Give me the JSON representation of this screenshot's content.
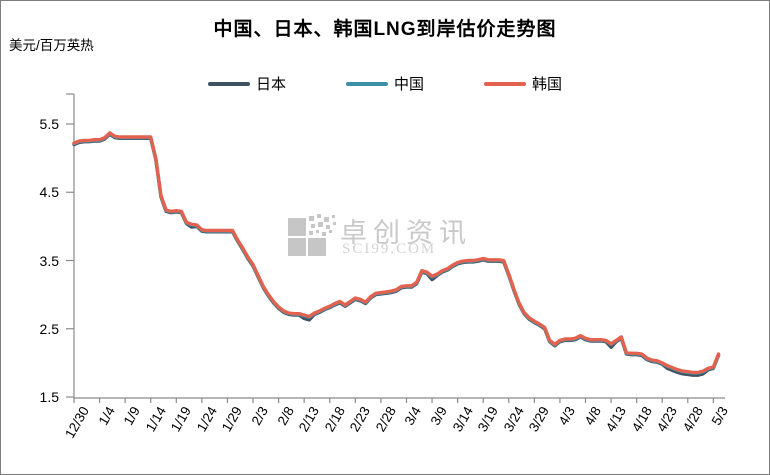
{
  "chart": {
    "title": "中国、日本、韩国LNG到岸估价走势图",
    "unit_label": "美元/百万英热"
  },
  "watermark": {
    "name": "卓创资讯",
    "site": "SCI99.COM"
  },
  "chart_data": {
    "type": "line",
    "title": "中国、日本、韩国LNG到岸估价走势图",
    "xlabel": "",
    "ylabel": "美元/百万英热",
    "ylim": [
      1.5,
      5.5
    ],
    "y_ticks": [
      5.5,
      4.5,
      3.5,
      2.5,
      1.5
    ],
    "grid": false,
    "legend_position": "top",
    "x_tick_labels": [
      "12/30",
      "1/4",
      "1/9",
      "1/14",
      "1/19",
      "1/24",
      "1/29",
      "2/3",
      "2/8",
      "2/13",
      "2/18",
      "2/23",
      "2/28",
      "3/4",
      "3/9",
      "3/14",
      "3/19",
      "3/24",
      "3/29",
      "4/3",
      "4/8",
      "4/13",
      "4/18",
      "4/23",
      "4/28",
      "5/3"
    ],
    "x": [
      "12/30",
      "12/31",
      "1/1",
      "1/2",
      "1/3",
      "1/4",
      "1/5",
      "1/6",
      "1/7",
      "1/8",
      "1/9",
      "1/10",
      "1/11",
      "1/12",
      "1/13",
      "1/14",
      "1/15",
      "1/16",
      "1/17",
      "1/18",
      "1/19",
      "1/20",
      "1/21",
      "1/22",
      "1/23",
      "1/24",
      "1/25",
      "1/26",
      "1/27",
      "1/28",
      "1/29",
      "1/30",
      "1/31",
      "2/1",
      "2/2",
      "2/3",
      "2/4",
      "2/5",
      "2/6",
      "2/7",
      "2/8",
      "2/9",
      "2/10",
      "2/11",
      "2/12",
      "2/13",
      "2/14",
      "2/15",
      "2/16",
      "2/17",
      "2/18",
      "2/19",
      "2/20",
      "2/21",
      "2/22",
      "2/23",
      "2/24",
      "2/25",
      "2/26",
      "2/27",
      "2/28",
      "3/1",
      "3/2",
      "3/3",
      "3/4",
      "3/5",
      "3/6",
      "3/7",
      "3/8",
      "3/9",
      "3/10",
      "3/11",
      "3/12",
      "3/13",
      "3/14",
      "3/15",
      "3/16",
      "3/17",
      "3/18",
      "3/19",
      "3/20",
      "3/21",
      "3/22",
      "3/23",
      "3/24",
      "3/25",
      "3/26",
      "3/27",
      "3/28",
      "3/29",
      "3/30",
      "3/31",
      "4/1",
      "4/2",
      "4/3",
      "4/4",
      "4/5",
      "4/6",
      "4/7",
      "4/8",
      "4/9",
      "4/10",
      "4/11",
      "4/12",
      "4/13",
      "4/14",
      "4/15",
      "4/16",
      "4/17",
      "4/18",
      "4/19",
      "4/20",
      "4/21",
      "4/22",
      "4/23",
      "4/24",
      "4/25",
      "4/26",
      "4/27",
      "4/28",
      "4/29",
      "4/30",
      "5/1",
      "5/2",
      "5/3",
      "5/4",
      "5/5"
    ],
    "series": [
      {
        "name": "日本",
        "color": "#3E5262",
        "values": [
          5.2,
          5.23,
          5.24,
          5.24,
          5.25,
          5.25,
          5.28,
          5.35,
          5.3,
          5.29,
          5.29,
          5.29,
          5.29,
          5.29,
          5.29,
          5.29,
          4.98,
          4.43,
          4.22,
          4.2,
          4.21,
          4.2,
          4.04,
          3.99,
          4.0,
          3.93,
          3.92,
          3.92,
          3.92,
          3.92,
          3.92,
          3.92,
          3.78,
          3.66,
          3.53,
          3.42,
          3.26,
          3.1,
          2.98,
          2.88,
          2.8,
          2.74,
          2.71,
          2.7,
          2.7,
          2.65,
          2.63,
          2.71,
          2.74,
          2.78,
          2.81,
          2.85,
          2.88,
          2.83,
          2.88,
          2.93,
          2.91,
          2.87,
          2.95,
          3.0,
          3.01,
          3.02,
          3.03,
          3.05,
          3.1,
          3.11,
          3.11,
          3.16,
          3.33,
          3.31,
          3.22,
          3.28,
          3.33,
          3.36,
          3.41,
          3.45,
          3.47,
          3.48,
          3.48,
          3.49,
          3.51,
          3.49,
          3.49,
          3.49,
          3.48,
          3.28,
          3.06,
          2.86,
          2.72,
          2.64,
          2.59,
          2.55,
          2.5,
          2.31,
          2.25,
          2.31,
          2.33,
          2.33,
          2.34,
          2.38,
          2.34,
          2.32,
          2.32,
          2.32,
          2.31,
          2.23,
          2.31,
          2.36,
          2.13,
          2.12,
          2.12,
          2.11,
          2.05,
          2.02,
          2.01,
          1.98,
          1.92,
          1.89,
          1.86,
          1.84,
          1.83,
          1.82,
          1.82,
          1.84,
          1.9,
          1.92,
          2.11
        ]
      },
      {
        "name": "中国",
        "color": "#3C90A6",
        "values": [
          5.21,
          5.24,
          5.25,
          5.25,
          5.26,
          5.26,
          5.29,
          5.36,
          5.31,
          5.3,
          5.3,
          5.3,
          5.3,
          5.3,
          5.3,
          5.3,
          4.99,
          4.44,
          4.23,
          4.21,
          4.22,
          4.21,
          4.05,
          4.02,
          4.01,
          3.94,
          3.93,
          3.93,
          3.93,
          3.93,
          3.93,
          3.93,
          3.79,
          3.67,
          3.54,
          3.43,
          3.27,
          3.11,
          2.99,
          2.89,
          2.81,
          2.75,
          2.72,
          2.71,
          2.71,
          2.69,
          2.67,
          2.72,
          2.75,
          2.79,
          2.82,
          2.86,
          2.89,
          2.84,
          2.89,
          2.94,
          2.92,
          2.88,
          2.96,
          3.01,
          3.02,
          3.03,
          3.04,
          3.06,
          3.11,
          3.12,
          3.12,
          3.17,
          3.34,
          3.32,
          3.26,
          3.29,
          3.34,
          3.37,
          3.42,
          3.46,
          3.48,
          3.49,
          3.49,
          3.5,
          3.52,
          3.5,
          3.5,
          3.5,
          3.49,
          3.29,
          3.07,
          2.87,
          2.73,
          2.65,
          2.6,
          2.56,
          2.51,
          2.32,
          2.26,
          2.32,
          2.34,
          2.34,
          2.35,
          2.39,
          2.35,
          2.33,
          2.33,
          2.33,
          2.32,
          2.27,
          2.32,
          2.37,
          2.14,
          2.13,
          2.13,
          2.12,
          2.06,
          2.03,
          2.02,
          1.99,
          1.95,
          1.92,
          1.89,
          1.87,
          1.86,
          1.85,
          1.85,
          1.87,
          1.91,
          1.93,
          2.12
        ]
      },
      {
        "name": "韩国",
        "color": "#E2614F",
        "values": [
          5.22,
          5.25,
          5.26,
          5.26,
          5.27,
          5.27,
          5.3,
          5.37,
          5.32,
          5.31,
          5.31,
          5.31,
          5.31,
          5.31,
          5.31,
          5.31,
          5.0,
          4.45,
          4.24,
          4.22,
          4.23,
          4.22,
          4.06,
          4.03,
          4.02,
          3.95,
          3.94,
          3.94,
          3.94,
          3.94,
          3.94,
          3.94,
          3.8,
          3.68,
          3.55,
          3.44,
          3.28,
          3.12,
          3.0,
          2.9,
          2.82,
          2.76,
          2.73,
          2.72,
          2.72,
          2.7,
          2.68,
          2.73,
          2.76,
          2.8,
          2.83,
          2.87,
          2.9,
          2.85,
          2.9,
          2.95,
          2.93,
          2.89,
          2.97,
          3.02,
          3.03,
          3.04,
          3.05,
          3.07,
          3.12,
          3.13,
          3.13,
          3.18,
          3.35,
          3.33,
          3.27,
          3.3,
          3.35,
          3.38,
          3.43,
          3.47,
          3.49,
          3.5,
          3.5,
          3.51,
          3.53,
          3.51,
          3.51,
          3.51,
          3.5,
          3.3,
          3.08,
          2.88,
          2.74,
          2.66,
          2.61,
          2.57,
          2.52,
          2.33,
          2.27,
          2.33,
          2.35,
          2.35,
          2.36,
          2.4,
          2.36,
          2.34,
          2.34,
          2.34,
          2.33,
          2.28,
          2.33,
          2.38,
          2.15,
          2.14,
          2.14,
          2.13,
          2.07,
          2.04,
          2.03,
          2.0,
          1.96,
          1.93,
          1.9,
          1.88,
          1.87,
          1.86,
          1.86,
          1.88,
          1.92,
          1.94,
          2.13
        ]
      }
    ]
  }
}
